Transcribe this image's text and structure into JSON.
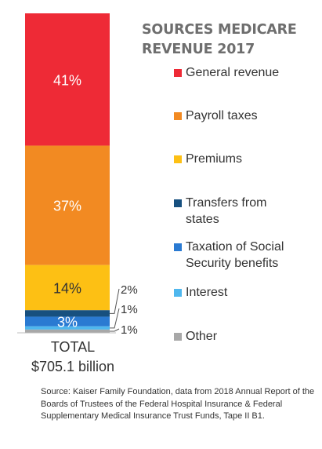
{
  "chart_data": {
    "type": "bar",
    "stacked": true,
    "title": "SOURCES MEDICARE REVENUE 2017",
    "categories": [
      "TOTAL"
    ],
    "total_label": "TOTAL",
    "total_value": "$705.1 billion",
    "ylim": [
      0,
      100
    ],
    "series": [
      {
        "name": "General revenue",
        "value": 41,
        "label": "41%",
        "color": "#ee2a36",
        "label_position": "inside"
      },
      {
        "name": "Payroll taxes",
        "value": 37,
        "label": "37%",
        "color": "#f28a22",
        "label_position": "inside"
      },
      {
        "name": "Premiums",
        "value": 14,
        "label": "14%",
        "color": "#fdc014",
        "label_position": "inside"
      },
      {
        "name": "Transfers from states",
        "value": 2,
        "label": "2%",
        "color": "#17507f",
        "label_position": "outside"
      },
      {
        "name": "Taxation of Social Security benefits",
        "value": 3,
        "label": "3%",
        "color": "#2a7ad2",
        "label_position": "inside"
      },
      {
        "name": "Interest",
        "value": 1,
        "label": "1%",
        "color": "#4fb7ee",
        "label_position": "outside"
      },
      {
        "name": "Other",
        "value": 1,
        "label": "1%",
        "color": "#a8a8a8",
        "label_position": "outside"
      }
    ],
    "legend_position": "right"
  },
  "legend_lines": {
    "Transfers from states": [
      "Transfers from",
      "states"
    ],
    "Taxation of Social Security benefits": [
      "Taxation of Social",
      "Security benefits"
    ]
  },
  "title_lines": [
    "SOURCES MEDICARE",
    "REVENUE 2017"
  ],
  "total_lines": [
    "TOTAL",
    "$705.1 billion"
  ],
  "source": "Source: Kaiser Family Foundation, data from 2018 Annual Report of the Boards of Trustees of the Federal Hospital Insurance & Federal Supplementary Medical Insurance Trust Funds, Tape II B1."
}
